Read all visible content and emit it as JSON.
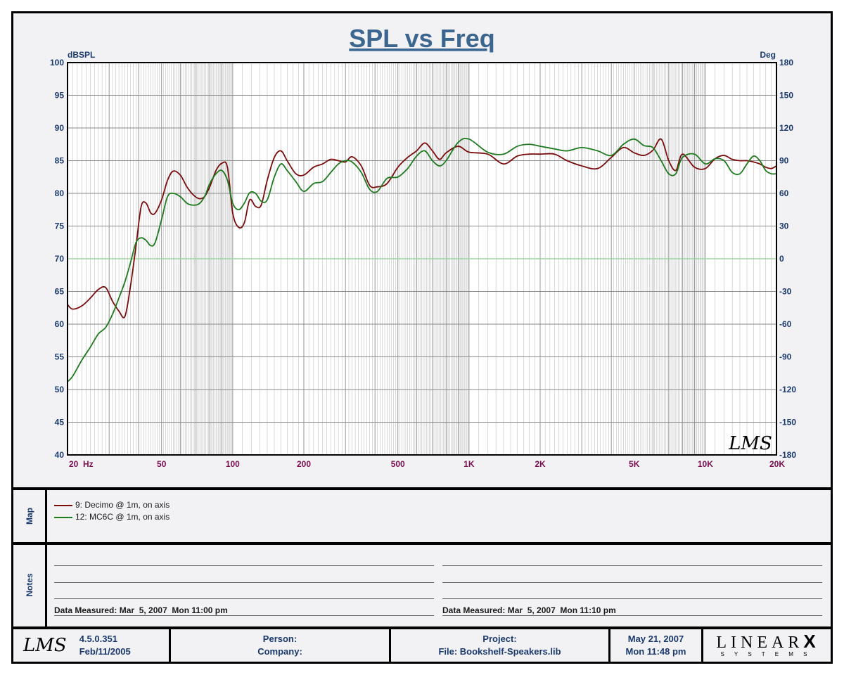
{
  "chart_data": {
    "type": "line",
    "title": "SPL vs Freq",
    "ylabel": "dBSPL",
    "y2label": "Deg",
    "xscale": "log",
    "xlim": [
      20,
      20000
    ],
    "ylim": [
      40,
      100
    ],
    "y2lim": [
      -180,
      180
    ],
    "x_tick_values": [
      20,
      50,
      100,
      200,
      500,
      1000,
      2000,
      5000,
      10000,
      20000
    ],
    "x_tick_labels": [
      "20  Hz",
      "50",
      "100",
      "200",
      "500",
      "1K",
      "2K",
      "5K",
      "10K",
      "20K"
    ],
    "y_ticks": [
      "100",
      "95",
      "90",
      "85",
      "80",
      "75",
      "70",
      "65",
      "60",
      "55",
      "50",
      "45",
      "40"
    ],
    "y2_ticks": [
      "180",
      "150",
      "120",
      "90",
      "60",
      "30",
      "0",
      "-30",
      "-60",
      "-90",
      "-120",
      "-150",
      "-180"
    ],
    "grid": true,
    "series": [
      {
        "name": "9: Decimo @ 1m, on axis",
        "color": "#7a0c0c",
        "x": [
          20,
          21,
          23,
          25,
          27,
          29,
          31,
          33,
          35,
          37,
          39,
          41,
          43,
          45,
          47,
          50,
          53,
          56,
          60,
          64,
          68,
          72,
          76,
          80,
          85,
          90,
          95,
          100,
          106,
          112,
          118,
          125,
          132,
          140,
          150,
          160,
          170,
          185,
          200,
          220,
          240,
          260,
          280,
          300,
          320,
          350,
          380,
          410,
          450,
          500,
          550,
          600,
          650,
          700,
          750,
          800,
          900,
          1000,
          1200,
          1400,
          1600,
          1800,
          2000,
          2300,
          2600,
          3000,
          3500,
          4000,
          4500,
          5000,
          5500,
          6000,
          6500,
          7000,
          7500,
          8000,
          9000,
          10000,
          11000,
          12000,
          13000,
          14000,
          15000,
          16000,
          17000,
          18000,
          19000,
          20000
        ],
        "y": [
          63,
          62.3,
          62.8,
          64,
          65.3,
          65.6,
          63.5,
          62,
          61.2,
          66,
          72,
          78,
          78.5,
          77,
          77,
          79,
          82,
          83.4,
          82.8,
          81,
          79.8,
          79.2,
          79.5,
          81,
          83.5,
          84.6,
          84,
          77,
          74.8,
          75.5,
          79,
          78,
          78.2,
          82,
          85.5,
          86.5,
          85,
          83,
          82.8,
          84,
          84.5,
          85.2,
          85,
          84.8,
          85.6,
          84.2,
          81.2,
          81,
          81.5,
          84,
          85.5,
          86.5,
          87.7,
          86.5,
          85.2,
          86.2,
          87.2,
          86.3,
          86,
          84.5,
          85.7,
          86,
          86,
          86,
          85,
          84.2,
          83.8,
          85.5,
          87,
          86.2,
          85.8,
          86.6,
          88.3,
          85,
          83.5,
          86,
          84,
          83.8,
          85.3,
          85.8,
          85.2,
          85,
          85,
          84.8,
          84.5,
          84,
          83.8,
          84.2
        ]
      },
      {
        "name": "12: MC6C @ 1m, on axis",
        "color": "#1e7a1e",
        "x": [
          20,
          21,
          23,
          25,
          27,
          29,
          31,
          33,
          35,
          37,
          39,
          41,
          43,
          45,
          47,
          50,
          53,
          56,
          60,
          64,
          68,
          72,
          76,
          80,
          85,
          90,
          95,
          100,
          106,
          112,
          118,
          125,
          132,
          140,
          150,
          160,
          170,
          185,
          200,
          220,
          240,
          260,
          280,
          300,
          320,
          350,
          380,
          410,
          450,
          500,
          550,
          600,
          650,
          700,
          750,
          800,
          900,
          1000,
          1200,
          1400,
          1600,
          1800,
          2000,
          2300,
          2600,
          3000,
          3500,
          4000,
          4500,
          5000,
          5500,
          6000,
          6500,
          7000,
          7500,
          8000,
          9000,
          10000,
          11000,
          12000,
          13000,
          14000,
          15000,
          16000,
          17000,
          18000,
          19000,
          20000
        ],
        "y": [
          51.2,
          52,
          54.5,
          56.5,
          58.5,
          59.5,
          61.5,
          64,
          66.5,
          69.5,
          72.5,
          73.2,
          72.8,
          72,
          72.5,
          76,
          79.5,
          80,
          79.5,
          78.5,
          78.2,
          78.4,
          79.5,
          81.5,
          83,
          83.5,
          82,
          78.5,
          77.5,
          78.5,
          80.1,
          80,
          78.8,
          79,
          82.5,
          84.5,
          83.5,
          81.8,
          80.3,
          81.5,
          81.8,
          83.2,
          84.5,
          85,
          84.8,
          83.2,
          80.6,
          80.3,
          82.3,
          82.5,
          83.8,
          85.7,
          86.5,
          85,
          84.2,
          85,
          87.8,
          88.3,
          86.3,
          86,
          87.2,
          87.5,
          87.2,
          86.8,
          86.5,
          87,
          86.5,
          85.8,
          87.5,
          88.3,
          87.3,
          87,
          85,
          83,
          83,
          85.5,
          86,
          84.5,
          85.3,
          85,
          83.2,
          83,
          84.5,
          85.7,
          85,
          83.5,
          83,
          83
        ]
      }
    ]
  },
  "legend": {
    "panel_label": "Map",
    "items": [
      {
        "label": "9: Decimo @ 1m, on axis",
        "color": "#7a0c0c"
      },
      {
        "label": "12: MC6C @ 1m, on axis",
        "color": "#1e7a1e"
      }
    ]
  },
  "notes": {
    "panel_label": "Notes",
    "left_text": "Data Measured: Mar  5, 2007  Mon 11:00 pm",
    "right_text": "Data Measured: Mar  5, 2007  Mon 11:10 pm"
  },
  "footer": {
    "logo": "LMS",
    "version": "4.5.0.351",
    "build_date": "Feb/11/2005",
    "person_label": "Person:",
    "company_label": "Company:",
    "project_label": "Project:",
    "file_label": "File: Bookshelf-Speakers.lib",
    "date": "May 21, 2007",
    "time": "Mon 11:48 pm",
    "brand": "LINEAR",
    "brand_x": "X",
    "brand_sub": "S Y S T E M S"
  },
  "watermark": "LMS",
  "colors": {
    "title": "#3a6690",
    "axis_labels": "#1a3a6e",
    "x_tick_labels": "#7a1050",
    "grid": "#8a8a8a",
    "zero_line": "#9fd49f",
    "plot_bg": "#ffffff",
    "frame_bg": "#f2f1f4"
  }
}
